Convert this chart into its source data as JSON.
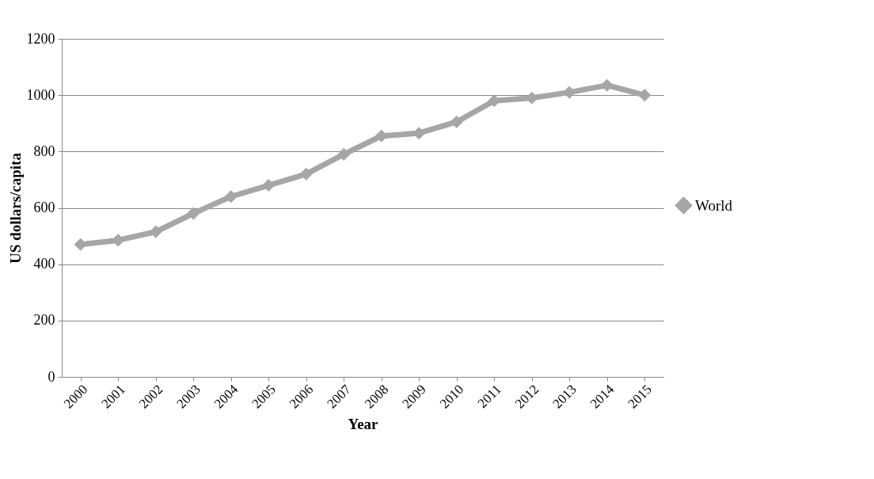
{
  "chart_data": {
    "type": "line",
    "xlabel": "Year",
    "ylabel": "US dollars/capita",
    "categories": [
      "2000",
      "2001",
      "2002",
      "2003",
      "2004",
      "2005",
      "2006",
      "2007",
      "2008",
      "2009",
      "2010",
      "2011",
      "2012",
      "2013",
      "2014",
      "2015"
    ],
    "series": [
      {
        "name": "World",
        "color": "#a6a6a6",
        "values": [
          470,
          485,
          515,
          580,
          640,
          680,
          720,
          790,
          855,
          865,
          905,
          980,
          990,
          1010,
          1035,
          1000
        ]
      }
    ],
    "ylim": [
      0,
      1200
    ],
    "yticks": [
      0,
      200,
      400,
      600,
      800,
      1000,
      1200
    ],
    "grid": "y",
    "legend": "right",
    "marker": "diamond",
    "line_style": "solid"
  }
}
